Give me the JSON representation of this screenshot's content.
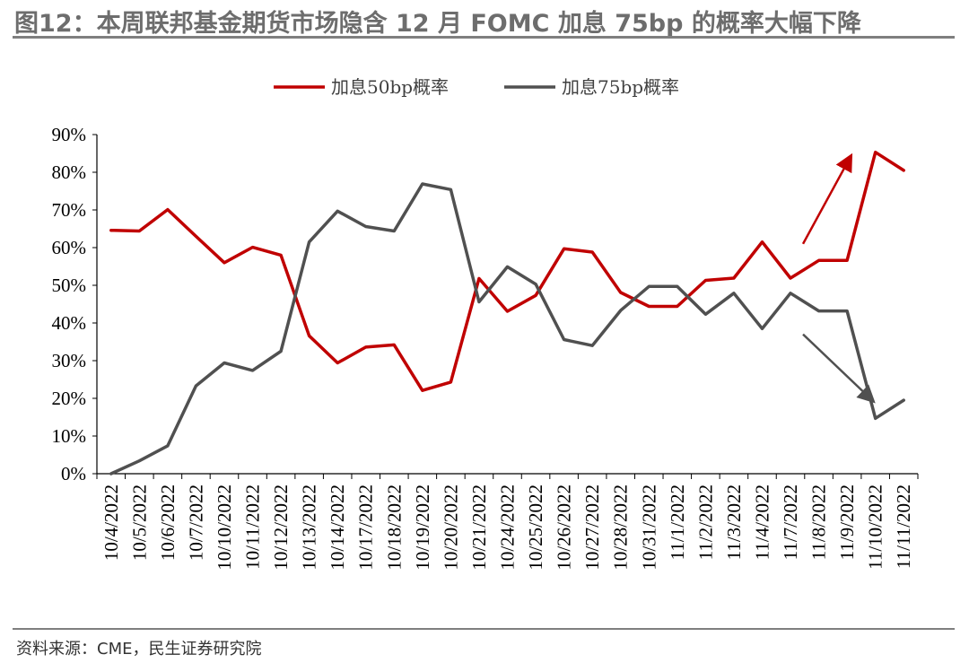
{
  "header": {
    "title": "图12：本周联邦基金期货市场隐含 12 月 FOMC 加息 75bp 的概率大幅下降"
  },
  "footer": {
    "source": "资料来源：CME，民生证券研究院"
  },
  "colors": {
    "series_50": "#c00000",
    "series_75": "#505050"
  },
  "chart_data": {
    "type": "line",
    "x": [
      "10/4/2022",
      "10/5/2022",
      "10/6/2022",
      "10/7/2022",
      "10/10/2022",
      "10/11/2022",
      "10/12/2022",
      "10/13/2022",
      "10/14/2022",
      "10/17/2022",
      "10/18/2022",
      "10/19/2022",
      "10/20/2022",
      "10/21/2022",
      "10/24/2022",
      "10/25/2022",
      "10/26/2022",
      "10/27/2022",
      "10/28/2022",
      "10/31/2022",
      "11/1/2022",
      "11/2/2022",
      "11/3/2022",
      "11/4/2022",
      "11/7/2022",
      "11/8/2022",
      "11/9/2022",
      "11/10/2022",
      "11/11/2022"
    ],
    "series": [
      {
        "name": "加息50bp概率",
        "color": "#c00000",
        "values": [
          64.6,
          64.4,
          70.1,
          63.0,
          56.0,
          60.1,
          58.0,
          36.6,
          29.4,
          33.6,
          34.2,
          22.1,
          24.3,
          51.8,
          43.1,
          47.3,
          59.7,
          58.8,
          48.1,
          44.4,
          44.4,
          51.3,
          51.9,
          61.5,
          51.9,
          56.6,
          56.6,
          85.3,
          80.5
        ]
      },
      {
        "name": "加息75bp概率",
        "color": "#505050",
        "values": [
          0.0,
          3.4,
          7.4,
          23.3,
          29.4,
          27.4,
          32.5,
          61.5,
          69.7,
          65.6,
          64.4,
          76.9,
          75.4,
          45.6,
          54.9,
          50.3,
          35.6,
          34.0,
          43.3,
          49.7,
          49.7,
          42.3,
          47.9,
          38.5,
          47.9,
          43.2,
          43.2,
          14.7,
          19.5
        ]
      }
    ],
    "ylim": [
      0,
      90
    ],
    "y_ticks": [
      "0%",
      "10%",
      "20%",
      "30%",
      "40%",
      "50%",
      "60%",
      "70%",
      "80%",
      "90%"
    ],
    "legend_position": "top",
    "grid": false,
    "annotations": [
      {
        "kind": "arrow-up",
        "color": "#c00000",
        "from": [
          "11/7/2022",
          61
        ],
        "to": [
          "11/10/2022",
          84
        ]
      },
      {
        "kind": "arrow-down",
        "color": "#505050",
        "from": [
          "11/7/2022",
          37
        ],
        "to": [
          "11/9/2022",
          19.5
        ]
      }
    ]
  }
}
